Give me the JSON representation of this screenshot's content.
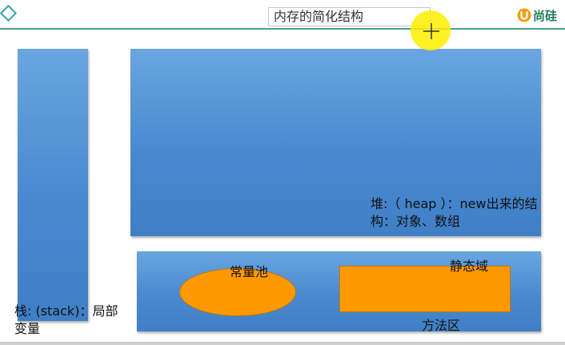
{
  "title": "内存的简化结构",
  "brand": {
    "name": "尚硅",
    "color": "#1f7a5f"
  },
  "diagram": {
    "stack": {
      "label": "栈: (stack)：局部变量"
    },
    "heap": {
      "label": "堆:（ heap ）：new出来的结构：对象、数组"
    },
    "method_area": {
      "label": "方法区",
      "constant_pool": "常量池",
      "static_field": "静态域"
    }
  },
  "colors": {
    "block": "#4a89d0",
    "highlight": "#ff9900",
    "accent_line": "#4aa38a"
  }
}
